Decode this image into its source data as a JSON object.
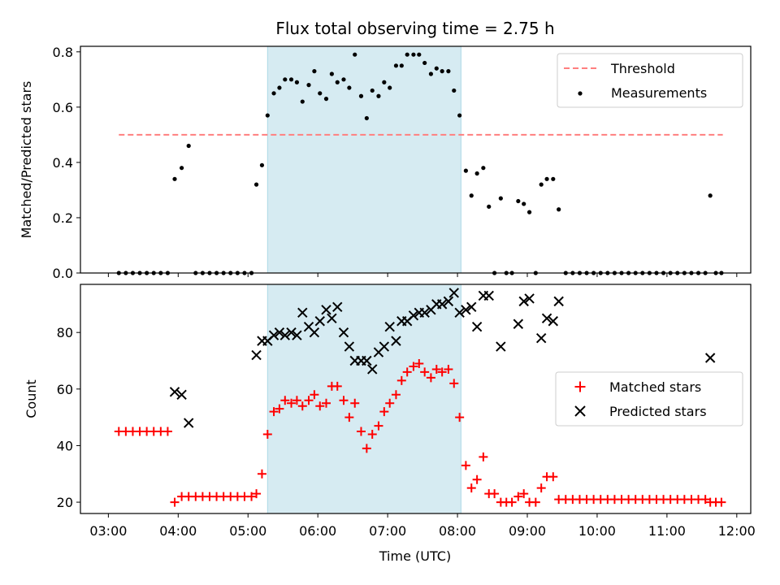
{
  "chart_data": [
    {
      "type": "scatter",
      "title": "Flux total observing time = 2.75 h",
      "xlabel": "",
      "ylabel": "Matched/Predicted stars",
      "x_unit": "hours UTC",
      "xlim": [
        2.6,
        12.2
      ],
      "ylim": [
        0,
        0.82
      ],
      "yticks": [
        0.0,
        0.2,
        0.4,
        0.6,
        0.8
      ],
      "ytick_labels": [
        "0.0",
        "0.2",
        "0.4",
        "0.6",
        "0.8"
      ],
      "shaded_span": {
        "x": [
          5.28,
          8.05
        ],
        "color": "#add8e6"
      },
      "legend_position": "top-right",
      "threshold": {
        "name": "Threshold",
        "value": 0.5,
        "x": [
          3.15,
          11.8
        ],
        "color": "#ff7f7f",
        "style": "dashed"
      },
      "series": [
        {
          "name": "Measurements",
          "color": "#000000",
          "marker": "dot",
          "x": [
            3.15,
            3.25,
            3.35,
            3.45,
            3.55,
            3.65,
            3.75,
            3.85,
            3.95,
            4.05,
            4.15,
            4.25,
            4.35,
            4.45,
            4.55,
            4.65,
            4.75,
            4.85,
            4.95,
            5.05,
            5.12,
            5.2,
            5.28,
            5.37,
            5.45,
            5.53,
            5.62,
            5.7,
            5.78,
            5.87,
            5.95,
            6.03,
            6.12,
            6.2,
            6.28,
            6.37,
            6.45,
            6.53,
            6.62,
            6.7,
            6.78,
            6.87,
            6.95,
            7.03,
            7.12,
            7.2,
            7.28,
            7.37,
            7.45,
            7.53,
            7.62,
            7.7,
            7.78,
            7.87,
            7.95,
            8.03,
            8.12,
            8.2,
            8.28,
            8.37,
            8.45,
            8.53,
            8.62,
            8.7,
            8.78,
            8.87,
            8.95,
            9.03,
            9.12,
            9.2,
            9.28,
            9.37,
            9.45,
            9.55,
            9.65,
            9.75,
            9.85,
            9.95,
            10.05,
            10.15,
            10.25,
            10.35,
            10.45,
            10.55,
            10.65,
            10.75,
            10.85,
            10.95,
            11.05,
            11.15,
            11.25,
            11.35,
            11.45,
            11.55,
            11.62,
            11.7,
            11.78
          ],
          "y": [
            0,
            0,
            0,
            0,
            0,
            0,
            0,
            0,
            0.34,
            0.38,
            0.46,
            0,
            0,
            0,
            0,
            0,
            0,
            0,
            0,
            0,
            0.32,
            0.39,
            0.57,
            0.65,
            0.67,
            0.7,
            0.7,
            0.69,
            0.62,
            0.68,
            0.73,
            0.65,
            0.63,
            0.72,
            0.69,
            0.7,
            0.67,
            0.79,
            0.64,
            0.56,
            0.66,
            0.64,
            0.69,
            0.67,
            0.75,
            0.75,
            0.79,
            0.79,
            0.79,
            0.76,
            0.72,
            0.74,
            0.73,
            0.73,
            0.66,
            0.57,
            0.37,
            0.28,
            0.36,
            0.38,
            0.24,
            0,
            0.27,
            0,
            0,
            0.26,
            0.25,
            0.22,
            0,
            0.32,
            0.34,
            0.34,
            0.23,
            0,
            0,
            0,
            0,
            0,
            0,
            0,
            0,
            0,
            0,
            0,
            0,
            0,
            0,
            0,
            0,
            0,
            0,
            0,
            0,
            0,
            0.28,
            0,
            0
          ]
        }
      ]
    },
    {
      "type": "scatter",
      "title": "",
      "xlabel": "Time (UTC)",
      "ylabel": "Count",
      "x_unit": "hours UTC",
      "xlim": [
        2.6,
        12.2
      ],
      "ylim": [
        16,
        97
      ],
      "xticks": [
        3,
        4,
        5,
        6,
        7,
        8,
        9,
        10,
        11,
        12
      ],
      "xtick_labels": [
        "03:00",
        "04:00",
        "05:00",
        "06:00",
        "07:00",
        "08:00",
        "09:00",
        "10:00",
        "11:00",
        "12:00"
      ],
      "yticks": [
        20,
        40,
        60,
        80
      ],
      "ytick_labels": [
        "20",
        "40",
        "60",
        "80"
      ],
      "shaded_span": {
        "x": [
          5.28,
          8.05
        ],
        "color": "#add8e6"
      },
      "legend_position": "center-right",
      "series": [
        {
          "name": "Matched stars",
          "color": "#ff0000",
          "marker": "plus",
          "x": [
            3.15,
            3.25,
            3.35,
            3.45,
            3.55,
            3.65,
            3.75,
            3.85,
            3.95,
            4.05,
            4.15,
            4.25,
            4.35,
            4.45,
            4.55,
            4.65,
            4.75,
            4.85,
            4.95,
            5.05,
            5.12,
            5.2,
            5.28,
            5.37,
            5.45,
            5.53,
            5.62,
            5.7,
            5.78,
            5.87,
            5.95,
            6.03,
            6.12,
            6.2,
            6.28,
            6.37,
            6.45,
            6.53,
            6.62,
            6.7,
            6.78,
            6.87,
            6.95,
            7.03,
            7.12,
            7.2,
            7.28,
            7.37,
            7.45,
            7.53,
            7.62,
            7.7,
            7.78,
            7.87,
            7.95,
            8.03,
            8.12,
            8.2,
            8.28,
            8.37,
            8.45,
            8.53,
            8.62,
            8.7,
            8.78,
            8.87,
            8.95,
            9.03,
            9.12,
            9.2,
            9.28,
            9.37,
            9.45,
            9.55,
            9.65,
            9.75,
            9.85,
            9.95,
            10.05,
            10.15,
            10.25,
            10.35,
            10.45,
            10.55,
            10.65,
            10.75,
            10.85,
            10.95,
            11.05,
            11.15,
            11.25,
            11.35,
            11.45,
            11.55,
            11.62,
            11.7,
            11.78
          ],
          "y": [
            45,
            45,
            45,
            45,
            45,
            45,
            45,
            45,
            20,
            22,
            22,
            22,
            22,
            22,
            22,
            22,
            22,
            22,
            22,
            22,
            23,
            30,
            44,
            52,
            53,
            56,
            55,
            56,
            54,
            56,
            58,
            54,
            55,
            61,
            61,
            56,
            50,
            55,
            45,
            39,
            44,
            47,
            52,
            55,
            58,
            63,
            66,
            68,
            69,
            66,
            64,
            67,
            66,
            67,
            62,
            50,
            33,
            25,
            28,
            36,
            23,
            23,
            20,
            20,
            20,
            22,
            23,
            20,
            20,
            25,
            29,
            29,
            21,
            21,
            21,
            21,
            21,
            21,
            21,
            21,
            21,
            21,
            21,
            21,
            21,
            21,
            21,
            21,
            21,
            21,
            21,
            21,
            21,
            21,
            20,
            20,
            20
          ]
        },
        {
          "name": "Predicted stars",
          "color": "#000000",
          "marker": "x",
          "x": [
            3.95,
            4.05,
            4.15,
            5.12,
            5.2,
            5.28,
            5.37,
            5.45,
            5.53,
            5.62,
            5.7,
            5.78,
            5.87,
            5.95,
            6.03,
            6.12,
            6.2,
            6.28,
            6.37,
            6.45,
            6.53,
            6.62,
            6.7,
            6.78,
            6.87,
            6.95,
            7.03,
            7.12,
            7.2,
            7.28,
            7.37,
            7.45,
            7.53,
            7.62,
            7.7,
            7.78,
            7.87,
            7.95,
            8.03,
            8.12,
            8.2,
            8.28,
            8.37,
            8.45,
            8.62,
            8.87,
            8.95,
            9.03,
            9.2,
            9.28,
            9.37,
            9.45,
            11.62
          ],
          "y": [
            59,
            58,
            48,
            72,
            77,
            77,
            79,
            80,
            79,
            80,
            79,
            87,
            82,
            80,
            84,
            88,
            85,
            89,
            80,
            75,
            70,
            70,
            70,
            67,
            73,
            75,
            82,
            77,
            84,
            84,
            86,
            87,
            87,
            88,
            90,
            90,
            91,
            94,
            87,
            88,
            89,
            82,
            93,
            93,
            75,
            83,
            91,
            92,
            78,
            85,
            84,
            91,
            71
          ]
        }
      ]
    }
  ]
}
